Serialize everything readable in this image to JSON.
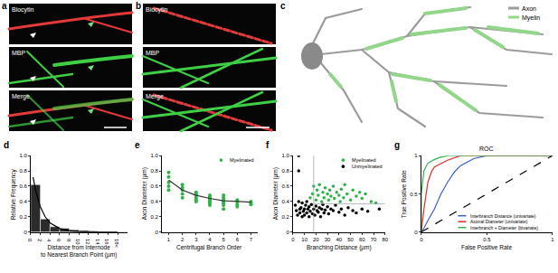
{
  "panels": [
    {
      "label": "a",
      "rows": [
        "Biocytin",
        "MBP",
        "Merge"
      ]
    },
    {
      "label": "b",
      "rows": [
        "Biocytin",
        "MBP",
        "Merge"
      ]
    },
    {
      "label": "c",
      "legend": [
        {
          "name": "Axon",
          "color": "#9b9b9b"
        },
        {
          "name": "Myelin",
          "color": "#93d68b"
        }
      ]
    }
  ],
  "chart_data": [
    {
      "label": "d",
      "type": "histogram",
      "xlabel": [
        "Distance from Internode",
        "to Nearest Branch Point (µm)"
      ],
      "ylabel": "Relative Frequency",
      "bins": [
        0,
        2,
        4,
        6,
        8,
        10,
        12,
        14,
        16,
        18,
        20
      ],
      "values": [
        0.62,
        0.17,
        0.07,
        0.05,
        0.03,
        0.02,
        0.01,
        0.005,
        0,
        0.005
      ],
      "color": "#2b2b2b",
      "xlim": [
        0,
        20
      ],
      "xticks": [
        0,
        2,
        4,
        6,
        8,
        10,
        12,
        14,
        16,
        {
          "value": 18,
          "label": "18<"
        }
      ],
      "ylim": [
        0,
        1
      ],
      "yticks": [
        0,
        0.2,
        0.4,
        0.6,
        0.8,
        {
          "value": 1,
          "label": "1.0"
        }
      ],
      "series": [
        {
          "type": "line",
          "color": "#000000",
          "x": [
            0.5,
            1,
            2,
            3,
            4,
            6,
            8,
            10,
            14,
            18
          ],
          "values": [
            0.72,
            0.55,
            0.33,
            0.2,
            0.12,
            0.045,
            0.018,
            0.007,
            0.002,
            0.001
          ]
        }
      ]
    },
    {
      "label": "e",
      "type": "scatter",
      "xlabel": "Centrifugal Branch Order",
      "ylabel": "Axon Diameter (µm)",
      "xlim": [
        0.5,
        7.5
      ],
      "xticks": [
        1,
        2,
        3,
        4,
        5,
        6,
        7
      ],
      "ylim": [
        0,
        1
      ],
      "yticks": [
        0,
        0.2,
        0.4,
        0.6,
        0.8,
        {
          "value": 1,
          "label": "1.0"
        }
      ],
      "legend": "upper right",
      "series": [
        {
          "name": "Myelinated",
          "color": "#2db34a",
          "marker": "circle",
          "x": [
            1,
            1,
            1,
            1,
            1,
            2,
            2,
            2,
            2,
            2,
            3,
            3,
            3,
            3,
            3,
            3,
            4,
            4,
            4,
            4,
            4,
            4,
            4,
            5,
            5,
            5,
            5,
            5,
            5,
            5,
            6,
            6,
            6,
            6,
            7,
            7,
            7
          ],
          "values": [
            0.78,
            0.72,
            0.65,
            0.6,
            0.55,
            0.62,
            0.58,
            0.55,
            0.5,
            0.45,
            0.52,
            0.5,
            0.48,
            0.45,
            0.42,
            0.4,
            0.48,
            0.46,
            0.44,
            0.42,
            0.4,
            0.38,
            0.35,
            0.48,
            0.45,
            0.42,
            0.4,
            0.38,
            0.35,
            0.3,
            0.42,
            0.4,
            0.36,
            0.33,
            0.4,
            0.38,
            0.36
          ]
        },
        {
          "type": "line",
          "color": "#333333",
          "x": [
            1,
            2,
            3,
            4,
            5,
            6,
            7
          ],
          "values": [
            0.68,
            0.55,
            0.48,
            0.44,
            0.41,
            0.4,
            0.39
          ]
        }
      ]
    },
    {
      "label": "f",
      "type": "scatter",
      "xlabel": "Branching Distance (µm)",
      "ylabel": "Axon Diameter (µm)",
      "xlim": [
        0,
        80
      ],
      "xticks": [
        0,
        10,
        20,
        30,
        40,
        50,
        60,
        70,
        80
      ],
      "ylim": [
        0,
        1
      ],
      "yticks": [
        0,
        0.2,
        0.4,
        0.6,
        0.8,
        {
          "value": 1,
          "label": "1.0"
        }
      ],
      "legend": "upper right",
      "thresholds": {
        "x": 18,
        "y": 0.37
      },
      "series": [
        {
          "name": "Myelinated",
          "color": "#2db34a",
          "marker": "circle",
          "x": [
            15,
            17,
            18,
            20,
            21,
            22,
            23,
            25,
            26,
            27,
            28,
            30,
            31,
            32,
            33,
            35,
            36,
            38,
            40,
            41,
            42,
            44,
            45,
            47,
            50,
            52,
            55,
            58,
            60,
            63,
            68,
            72
          ],
          "values": [
            0.45,
            0.5,
            0.6,
            0.42,
            0.55,
            0.48,
            0.62,
            0.4,
            0.52,
            0.45,
            0.58,
            0.5,
            0.42,
            0.55,
            0.47,
            0.6,
            0.44,
            0.52,
            0.48,
            0.4,
            0.56,
            0.45,
            0.62,
            0.5,
            0.42,
            0.55,
            0.47,
            0.52,
            0.44,
            0.5,
            0.4,
            0.38
          ]
        },
        {
          "name": "Unmyelinated",
          "color": "#000000",
          "marker": "circle",
          "x": [
            2,
            3,
            4,
            5,
            5,
            5,
            6,
            6,
            7,
            8,
            8,
            9,
            10,
            10,
            11,
            12,
            12,
            13,
            14,
            14,
            15,
            16,
            17,
            18,
            19,
            20,
            21,
            22,
            23,
            24,
            25,
            26,
            27,
            28,
            30,
            31,
            33,
            35,
            37,
            40,
            42,
            45,
            48,
            52,
            55,
            60,
            65,
            75
          ],
          "values": [
            0.35,
            0.28,
            0.22,
            1.0,
            0.8,
            0.4,
            0.3,
            0.25,
            0.32,
            0.2,
            0.38,
            0.27,
            0.3,
            0.22,
            0.35,
            0.25,
            0.4,
            0.3,
            0.2,
            0.33,
            0.27,
            0.36,
            0.24,
            0.3,
            0.22,
            0.34,
            0.28,
            0.26,
            0.32,
            0.2,
            0.3,
            0.36,
            0.25,
            0.29,
            0.33,
            0.24,
            0.3,
            0.28,
            0.35,
            0.26,
            0.3,
            0.22,
            0.32,
            0.28,
            0.25,
            0.3,
            0.27,
            0.3
          ]
        }
      ]
    },
    {
      "label": "g",
      "type": "line",
      "title": "ROC",
      "xlabel": "False Positive Rate",
      "ylabel": "True Positive Rate",
      "xlim": [
        0,
        1
      ],
      "xticks": [
        0,
        0.5,
        1
      ],
      "ylim": [
        0,
        1
      ],
      "yticks": [
        0,
        0.5,
        1
      ],
      "legend": "lower right",
      "series": [
        {
          "name": "Interbranch Distance (univariate)",
          "color": "#3a5fcd",
          "x": [
            0,
            0.02,
            0.05,
            0.1,
            0.15,
            0.2,
            0.25,
            0.3,
            0.4,
            0.5,
            1
          ],
          "values": [
            0,
            0.05,
            0.15,
            0.3,
            0.5,
            0.65,
            0.78,
            0.87,
            0.96,
            1,
            1
          ]
        },
        {
          "name": "Axonal Diameter (univariate)",
          "color": "#e0302a",
          "x": [
            0,
            0.02,
            0.05,
            0.08,
            0.1,
            0.15,
            0.2,
            0.3,
            1
          ],
          "values": [
            0,
            0.3,
            0.65,
            0.8,
            0.85,
            0.9,
            0.94,
            1,
            1
          ]
        },
        {
          "name": "Interbranch + Diameter (bivariate)",
          "color": "#2db34a",
          "x": [
            0,
            0,
            0.02,
            0.05,
            0.1,
            0.15,
            0.2,
            1
          ],
          "values": [
            0,
            0.5,
            0.8,
            0.9,
            0.95,
            0.98,
            1,
            1
          ]
        },
        {
          "color": "#000000",
          "line_style": "dashed",
          "x": [
            0,
            1
          ],
          "values": [
            0,
            1
          ]
        }
      ]
    }
  ]
}
